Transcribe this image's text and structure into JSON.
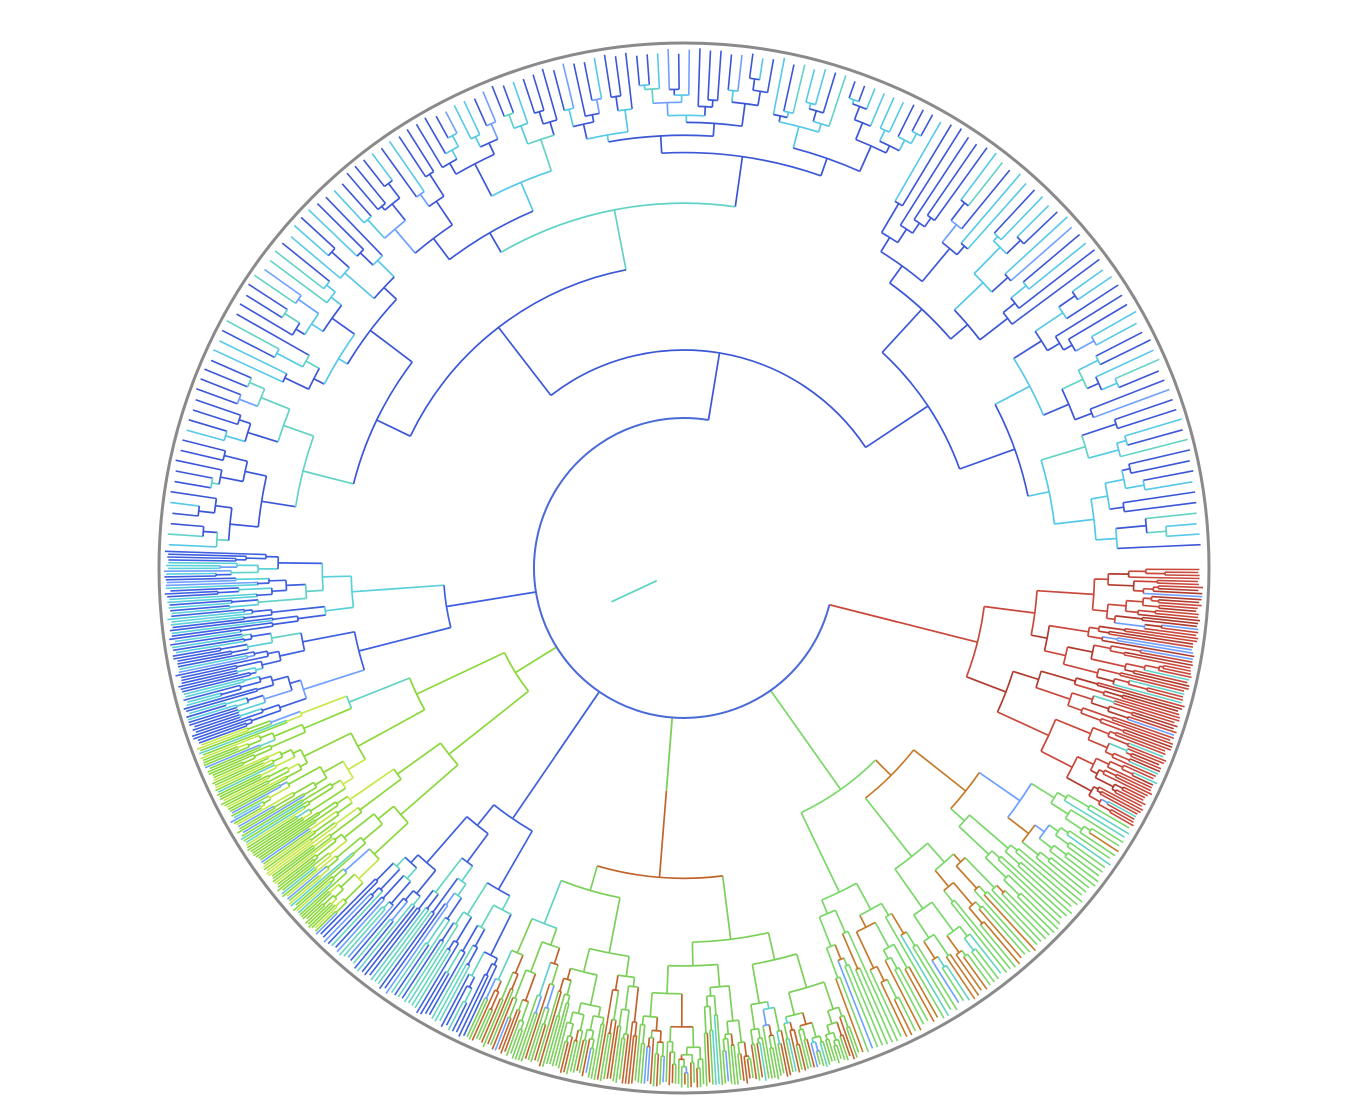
{
  "figure": {
    "type": "circular-phylogenetic-tree",
    "background": "#ffffff",
    "outer_ring_color": "#8a8a8a",
    "clades": [
      {
        "id": "blue-top",
        "color": "#3b56d6",
        "accent": "#56c8e8",
        "leaves": 150
      },
      {
        "id": "blue-left",
        "color": "#3d5fe0",
        "accent": "#5ad0d8",
        "leaves": 70
      },
      {
        "id": "green-left",
        "color": "#8ad83a",
        "accent": "#c6e84a",
        "leaves": 90
      },
      {
        "id": "blue-lowleft",
        "color": "#3f60dc",
        "accent": "#64d6c0",
        "leaves": 45
      },
      {
        "id": "mixed-bottom",
        "color": "#7ccf5a",
        "accent": "#c0642c",
        "leaves": 130
      },
      {
        "id": "mixed-lowright",
        "color": "#7ad86a",
        "accent": "#c47a2a",
        "leaves": 70
      },
      {
        "id": "red-right",
        "color": "#c8483c",
        "accent": "#b03a2e",
        "leaves": 90
      }
    ]
  }
}
